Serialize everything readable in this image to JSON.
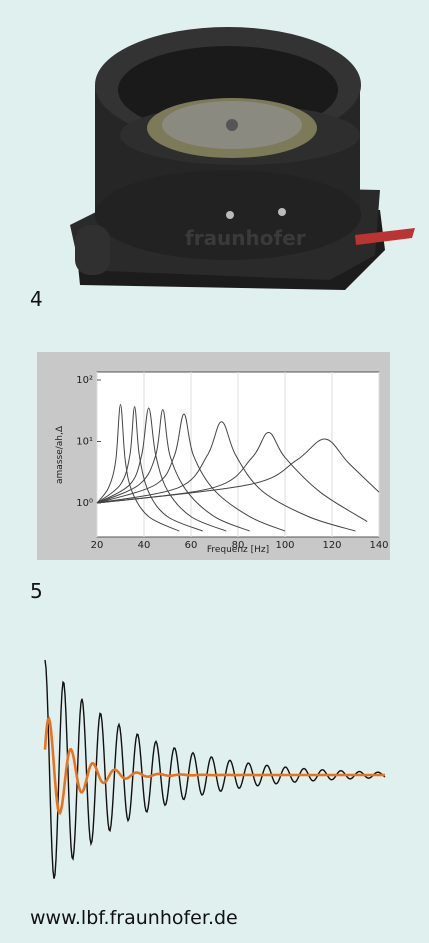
{
  "figure_4": {
    "label": "4",
    "photo_text": "fraunhofer"
  },
  "chart_data": {
    "type": "line",
    "x_label": "Frequenz [Hz]",
    "y_label": "amasse/ah,Δ",
    "xlim": [
      20,
      140
    ],
    "xticks": [
      20,
      40,
      60,
      80,
      100,
      120,
      140
    ],
    "ylim": [
      0.28,
      135
    ],
    "log_y": true,
    "yticks": [
      {
        "value": 1,
        "label": "10⁰"
      },
      {
        "value": 10,
        "label": "10¹"
      },
      {
        "value": 100,
        "label": "10²"
      }
    ],
    "grid": true,
    "color": "#444444",
    "series": [
      {
        "x": [
          20,
          25,
          28,
          30,
          32,
          35,
          42,
          55
        ],
        "values": [
          1,
          1.8,
          5,
          40,
          5,
          1.5,
          0.6,
          0.35
        ]
      },
      {
        "x": [
          20,
          30,
          34,
          36,
          38,
          42,
          50,
          65
        ],
        "values": [
          1,
          2,
          6,
          37,
          6,
          1.5,
          0.6,
          0.35
        ]
      },
      {
        "x": [
          20,
          34,
          39,
          42,
          45,
          50,
          60,
          75
        ],
        "values": [
          1,
          2,
          6,
          35,
          6,
          1.6,
          0.6,
          0.35
        ]
      },
      {
        "x": [
          20,
          38,
          45,
          48,
          51,
          58,
          70,
          85
        ],
        "values": [
          1,
          2,
          6,
          33,
          6,
          1.6,
          0.6,
          0.35
        ]
      },
      {
        "x": [
          20,
          45,
          53,
          57,
          61,
          70,
          85,
          100
        ],
        "values": [
          1,
          2,
          6,
          28,
          6,
          1.6,
          0.6,
          0.35
        ]
      },
      {
        "x": [
          20,
          55,
          67,
          73,
          79,
          90,
          110,
          130
        ],
        "values": [
          1,
          1.8,
          6,
          21,
          6,
          1.6,
          0.6,
          0.35
        ]
      },
      {
        "x": [
          20,
          70,
          86,
          93,
          100,
          115,
          135
        ],
        "values": [
          1,
          1.8,
          5.5,
          14,
          5.5,
          1.5,
          0.5
        ]
      },
      {
        "x": [
          20,
          85,
          105,
          117,
          127,
          140
        ],
        "values": [
          1,
          2,
          5,
          11,
          4.5,
          1.5
        ]
      }
    ]
  },
  "figure_5": {
    "label": "5"
  },
  "footer": {
    "url": "www.lbf.fraunhofer.de"
  }
}
